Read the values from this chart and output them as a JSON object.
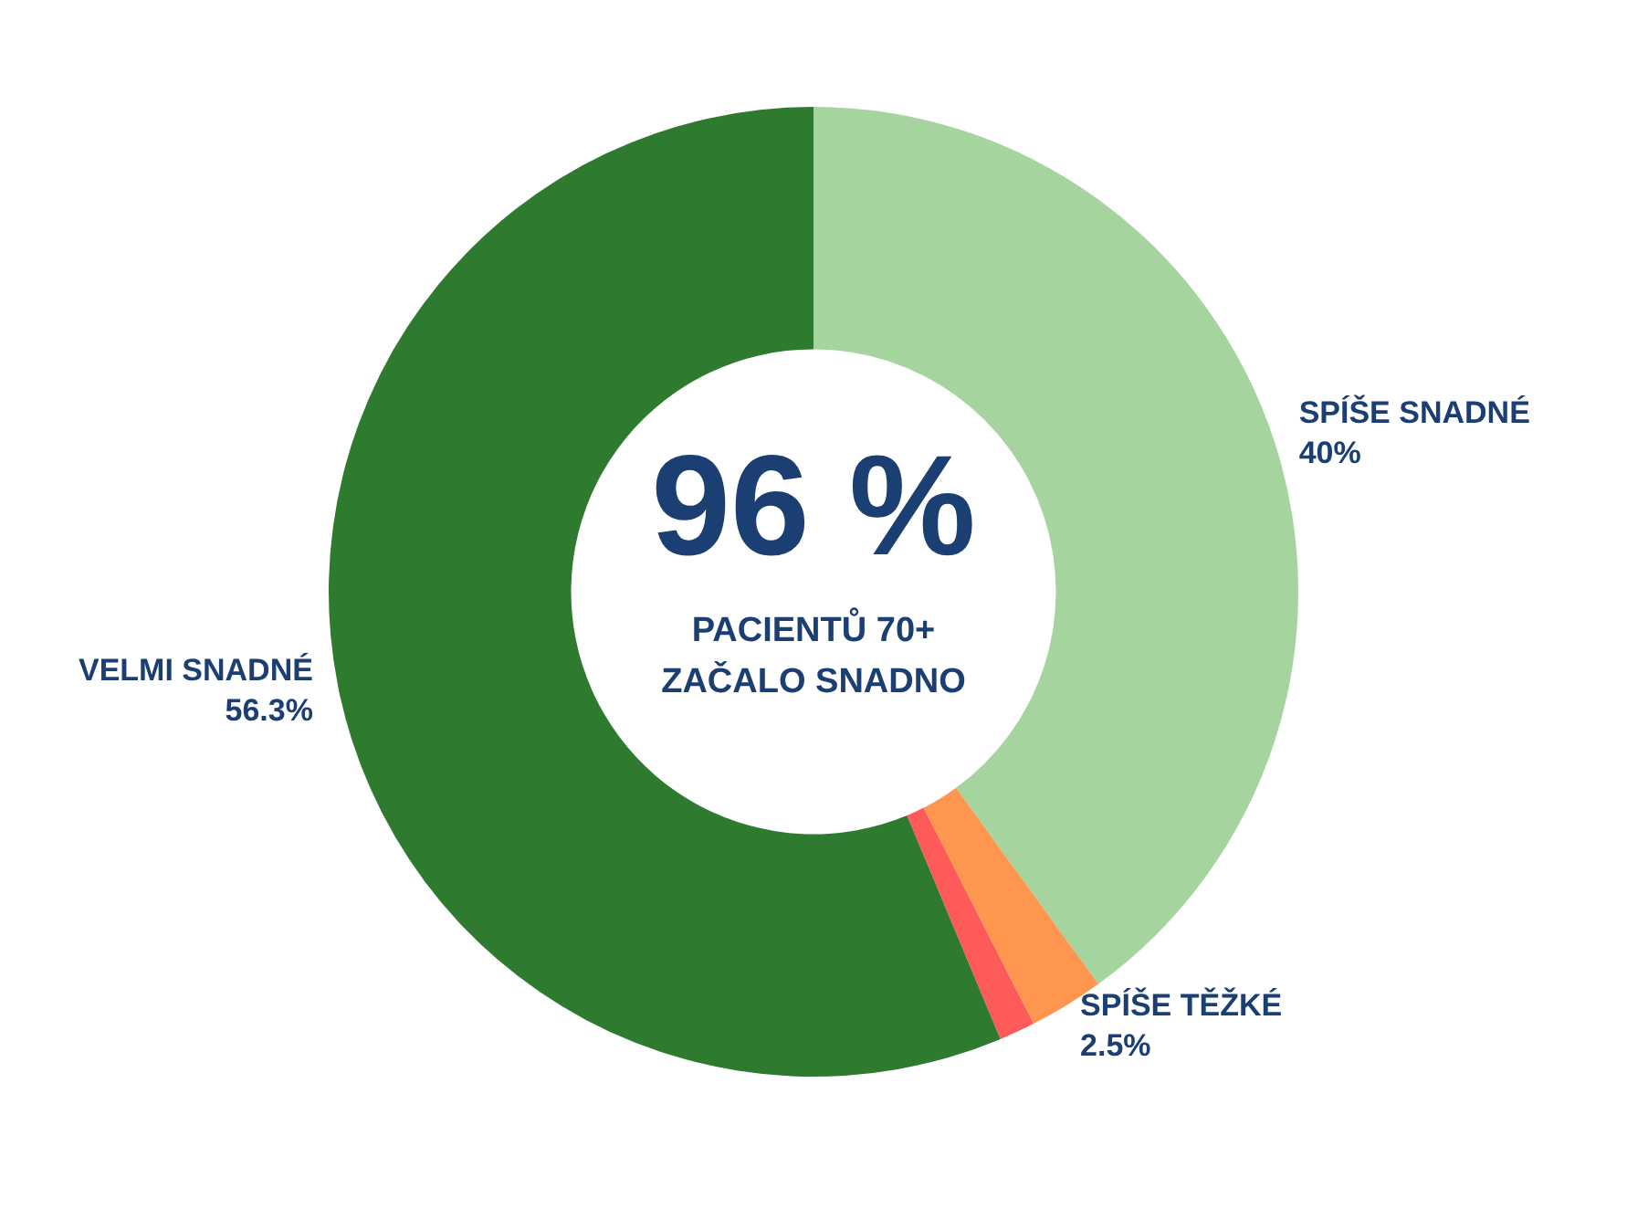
{
  "chart_data": {
    "type": "donut",
    "title": "96 %",
    "annotations": [
      "PACIENTŮ 70+",
      "ZAČALO SNADNO"
    ],
    "categories": [
      "SPÍŠE SNADNÉ",
      "SPÍŠE TĚŽKÉ",
      null,
      "VELMI SNADNÉ"
    ],
    "values": [
      40,
      2.5,
      1.2,
      56.3
    ],
    "colors": [
      "#a5d49e",
      "#ff9650",
      "#ff5a5a",
      "#2e7a2f"
    ],
    "value_labels": [
      "40%",
      "2.5%",
      null,
      "56.3%"
    ],
    "legend": false
  }
}
